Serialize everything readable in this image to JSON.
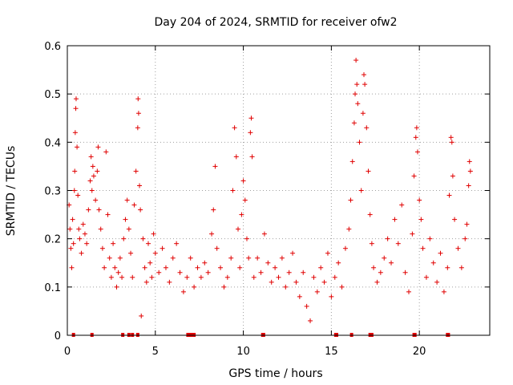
{
  "chart_data": {
    "type": "scatter",
    "title": "Day 204 of 2024, SRMTID for receiver ofw2",
    "xlabel": "GPS time / hours",
    "ylabel": "SRMTID / TECUs",
    "xlim": [
      0,
      24
    ],
    "ylim": [
      0,
      0.6
    ],
    "xticks": [
      "0",
      "5",
      "10",
      "15",
      "20"
    ],
    "yticks": [
      "0",
      "0.1",
      "0.2",
      "0.3",
      "0.4",
      "0.5",
      "0.6"
    ],
    "grid": true,
    "marker": "+",
    "color": "#e00000",
    "series": [
      {
        "name": "SRMTID",
        "points": [
          [
            0.1,
            0.27
          ],
          [
            0.15,
            0.22
          ],
          [
            0.2,
            0.18
          ],
          [
            0.25,
            0.14
          ],
          [
            0.3,
            0.24
          ],
          [
            0.35,
            0.19
          ],
          [
            0.4,
            0.3
          ],
          [
            0.42,
            0.34
          ],
          [
            0.45,
            0.42
          ],
          [
            0.48,
            0.47
          ],
          [
            0.5,
            0.49
          ],
          [
            0.55,
            0.39
          ],
          [
            0.6,
            0.29
          ],
          [
            0.65,
            0.22
          ],
          [
            0.7,
            0.2
          ],
          [
            0.8,
            0.17
          ],
          [
            0.9,
            0.23
          ],
          [
            1.0,
            0.21
          ],
          [
            1.1,
            0.19
          ],
          [
            1.2,
            0.26
          ],
          [
            1.3,
            0.32
          ],
          [
            1.35,
            0.37
          ],
          [
            1.4,
            0.3
          ],
          [
            1.45,
            0.35
          ],
          [
            1.5,
            0.33
          ],
          [
            1.6,
            0.28
          ],
          [
            1.7,
            0.34
          ],
          [
            1.75,
            0.39
          ],
          [
            1.8,
            0.26
          ],
          [
            1.9,
            0.22
          ],
          [
            2.0,
            0.18
          ],
          [
            2.1,
            0.14
          ],
          [
            2.2,
            0.38
          ],
          [
            2.3,
            0.25
          ],
          [
            2.4,
            0.16
          ],
          [
            2.5,
            0.12
          ],
          [
            2.6,
            0.19
          ],
          [
            2.7,
            0.14
          ],
          [
            2.8,
            0.1
          ],
          [
            2.9,
            0.13
          ],
          [
            3.0,
            0.16
          ],
          [
            3.1,
            0.12
          ],
          [
            3.2,
            0.2
          ],
          [
            3.3,
            0.24
          ],
          [
            3.4,
            0.28
          ],
          [
            3.5,
            0.22
          ],
          [
            3.6,
            0.17
          ],
          [
            3.7,
            0.12
          ],
          [
            3.8,
            0.27
          ],
          [
            3.9,
            0.34
          ],
          [
            4.0,
            0.43
          ],
          [
            4.02,
            0.49
          ],
          [
            4.05,
            0.46
          ],
          [
            4.1,
            0.31
          ],
          [
            4.15,
            0.26
          ],
          [
            4.2,
            0.04
          ],
          [
            4.3,
            0.2
          ],
          [
            4.4,
            0.14
          ],
          [
            4.5,
            0.11
          ],
          [
            4.6,
            0.19
          ],
          [
            4.7,
            0.15
          ],
          [
            4.8,
            0.12
          ],
          [
            4.9,
            0.21
          ],
          [
            5.0,
            0.17
          ],
          [
            5.2,
            0.13
          ],
          [
            5.4,
            0.18
          ],
          [
            5.6,
            0.14
          ],
          [
            5.8,
            0.11
          ],
          [
            6.0,
            0.16
          ],
          [
            6.2,
            0.19
          ],
          [
            6.4,
            0.13
          ],
          [
            6.6,
            0.09
          ],
          [
            6.8,
            0.12
          ],
          [
            7.0,
            0.16
          ],
          [
            7.2,
            0.1
          ],
          [
            7.4,
            0.14
          ],
          [
            7.6,
            0.12
          ],
          [
            7.8,
            0.15
          ],
          [
            8.0,
            0.13
          ],
          [
            8.2,
            0.21
          ],
          [
            8.3,
            0.26
          ],
          [
            8.4,
            0.35
          ],
          [
            8.5,
            0.18
          ],
          [
            8.7,
            0.14
          ],
          [
            8.9,
            0.1
          ],
          [
            9.1,
            0.12
          ],
          [
            9.3,
            0.16
          ],
          [
            9.4,
            0.3
          ],
          [
            9.5,
            0.43
          ],
          [
            9.6,
            0.37
          ],
          [
            9.7,
            0.22
          ],
          [
            9.8,
            0.14
          ],
          [
            9.9,
            0.25
          ],
          [
            10.0,
            0.32
          ],
          [
            10.1,
            0.28
          ],
          [
            10.2,
            0.2
          ],
          [
            10.3,
            0.16
          ],
          [
            10.4,
            0.42
          ],
          [
            10.45,
            0.45
          ],
          [
            10.5,
            0.37
          ],
          [
            10.6,
            0.12
          ],
          [
            10.8,
            0.16
          ],
          [
            11.0,
            0.13
          ],
          [
            11.2,
            0.21
          ],
          [
            11.4,
            0.15
          ],
          [
            11.6,
            0.11
          ],
          [
            11.8,
            0.14
          ],
          [
            12.0,
            0.12
          ],
          [
            12.2,
            0.16
          ],
          [
            12.4,
            0.1
          ],
          [
            12.6,
            0.13
          ],
          [
            12.8,
            0.17
          ],
          [
            13.0,
            0.11
          ],
          [
            13.2,
            0.08
          ],
          [
            13.4,
            0.13
          ],
          [
            13.6,
            0.06
          ],
          [
            13.8,
            0.03
          ],
          [
            14.0,
            0.12
          ],
          [
            14.2,
            0.09
          ],
          [
            14.4,
            0.14
          ],
          [
            14.6,
            0.11
          ],
          [
            14.8,
            0.17
          ],
          [
            15.0,
            0.08
          ],
          [
            15.2,
            0.12
          ],
          [
            15.4,
            0.15
          ],
          [
            15.6,
            0.1
          ],
          [
            15.8,
            0.18
          ],
          [
            16.0,
            0.22
          ],
          [
            16.1,
            0.28
          ],
          [
            16.2,
            0.36
          ],
          [
            16.3,
            0.44
          ],
          [
            16.35,
            0.5
          ],
          [
            16.4,
            0.57
          ],
          [
            16.45,
            0.52
          ],
          [
            16.5,
            0.48
          ],
          [
            16.6,
            0.4
          ],
          [
            16.7,
            0.3
          ],
          [
            16.8,
            0.46
          ],
          [
            16.85,
            0.54
          ],
          [
            16.9,
            0.52
          ],
          [
            17.0,
            0.43
          ],
          [
            17.1,
            0.34
          ],
          [
            17.2,
            0.25
          ],
          [
            17.3,
            0.19
          ],
          [
            17.4,
            0.14
          ],
          [
            17.6,
            0.11
          ],
          [
            17.8,
            0.13
          ],
          [
            18.0,
            0.16
          ],
          [
            18.2,
            0.2
          ],
          [
            18.4,
            0.15
          ],
          [
            18.6,
            0.24
          ],
          [
            18.8,
            0.19
          ],
          [
            19.0,
            0.27
          ],
          [
            19.2,
            0.13
          ],
          [
            19.4,
            0.09
          ],
          [
            19.6,
            0.21
          ],
          [
            19.7,
            0.33
          ],
          [
            19.8,
            0.41
          ],
          [
            19.85,
            0.43
          ],
          [
            19.9,
            0.38
          ],
          [
            20.0,
            0.28
          ],
          [
            20.1,
            0.24
          ],
          [
            20.2,
            0.18
          ],
          [
            20.4,
            0.12
          ],
          [
            20.6,
            0.2
          ],
          [
            20.8,
            0.15
          ],
          [
            21.0,
            0.11
          ],
          [
            21.2,
            0.17
          ],
          [
            21.4,
            0.09
          ],
          [
            21.6,
            0.14
          ],
          [
            21.7,
            0.29
          ],
          [
            21.8,
            0.41
          ],
          [
            21.85,
            0.4
          ],
          [
            21.9,
            0.33
          ],
          [
            22.0,
            0.24
          ],
          [
            22.2,
            0.18
          ],
          [
            22.4,
            0.14
          ],
          [
            22.6,
            0.2
          ],
          [
            22.7,
            0.23
          ],
          [
            22.8,
            0.31
          ],
          [
            22.85,
            0.36
          ],
          [
            22.9,
            0.34
          ]
        ]
      }
    ],
    "baseline_markers_hours": [
      0.35,
      1.4,
      3.15,
      3.5,
      3.7,
      4.0,
      6.85,
      6.95,
      7.05,
      7.2,
      11.1,
      11.15,
      15.25,
      15.3,
      16.15,
      17.2,
      17.3,
      19.7,
      19.75,
      21.6,
      21.65
    ]
  }
}
